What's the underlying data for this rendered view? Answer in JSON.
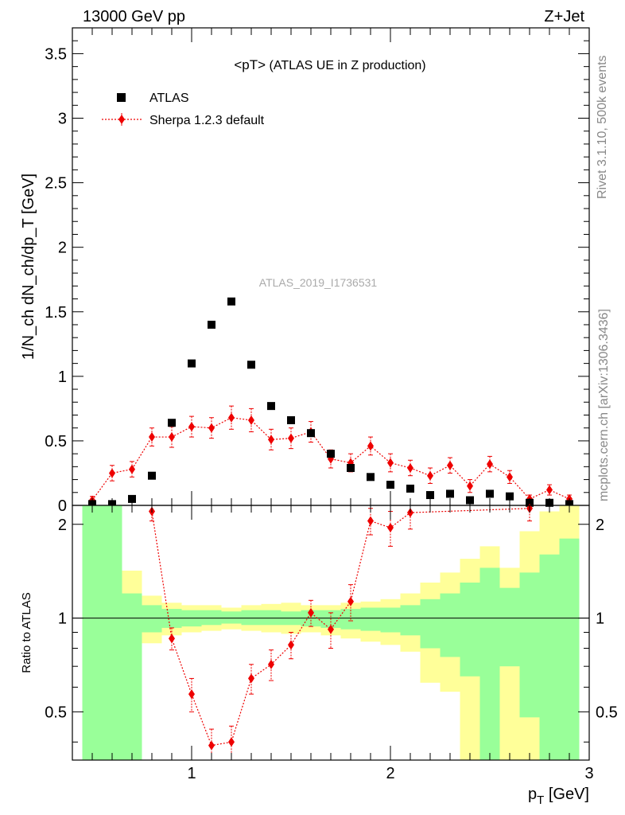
{
  "header": {
    "left": "13000 GeV pp",
    "right": "Z+Jet"
  },
  "main_plot": {
    "title_prefix": "<pT>",
    "title_suffix": " (ATLAS UE in Z production)",
    "ylabel": "1/N_ch dN_ch/dp_T [GeV]",
    "watermark": "ATLAS_2019_I1736531"
  },
  "ratio_plot": {
    "ylabel": "Ratio to ATLAS"
  },
  "side_notes": {
    "rivet": "Rivet 3.1.10,  500k events",
    "mcplots": "mcplots.cern.ch [arXiv:1306.3436]"
  },
  "legend": {
    "data_label": "ATLAS",
    "mc_label": "Sherpa 1.2.3 default"
  },
  "colors": {
    "data": "#000000",
    "mc": "#ee0000",
    "band_1sigma": "#99ff99",
    "band_2sigma": "#ffff99"
  },
  "chart_data": [
    {
      "type": "scatter",
      "xlabel": "p_T [GeV]",
      "xlim": [
        0.4,
        3.0
      ],
      "ylim": [
        0,
        3.7
      ],
      "xticks": [
        "1",
        "2",
        "3"
      ],
      "yticks": [
        "0",
        "0.5",
        "1",
        "1.5",
        "2",
        "2.5",
        "3",
        "3.5"
      ],
      "x": [
        0.5,
        0.6,
        0.7,
        0.8,
        0.9,
        1.0,
        1.1,
        1.2,
        1.3,
        1.4,
        1.5,
        1.6,
        1.7,
        1.8,
        1.9,
        2.0,
        2.1,
        2.2,
        2.3,
        2.4,
        2.5,
        2.6,
        2.7,
        2.8,
        2.9
      ],
      "series": [
        {
          "name": "ATLAS",
          "values": [
            0.01,
            0.01,
            0.05,
            0.23,
            0.64,
            1.1,
            1.4,
            1.58,
            1.09,
            0.77,
            0.66,
            0.56,
            0.4,
            0.29,
            0.22,
            0.16,
            0.13,
            0.08,
            0.09,
            0.04,
            0.09,
            0.07,
            0.02,
            0.02,
            0.01
          ]
        },
        {
          "name": "Sherpa 1.2.3 default",
          "values": [
            0.04,
            0.25,
            0.28,
            0.53,
            0.53,
            0.61,
            0.6,
            0.68,
            0.66,
            0.51,
            0.52,
            0.57,
            0.36,
            0.33,
            0.46,
            0.33,
            0.29,
            0.23,
            0.31,
            0.15,
            0.32,
            0.22,
            0.05,
            0.12,
            0.05
          ],
          "errors": [
            0.03,
            0.06,
            0.06,
            0.07,
            0.08,
            0.08,
            0.08,
            0.09,
            0.09,
            0.08,
            0.08,
            0.08,
            0.07,
            0.07,
            0.07,
            0.07,
            0.06,
            0.06,
            0.06,
            0.05,
            0.06,
            0.05,
            0.03,
            0.04,
            0.03
          ]
        }
      ]
    },
    {
      "type": "scatter",
      "xlabel": "p_T [GeV]",
      "ylabel": "Ratio to ATLAS",
      "xlim": [
        0.4,
        3.0
      ],
      "ylim": [
        0.35,
        2.3
      ],
      "xticks": [
        "1",
        "2",
        "3"
      ],
      "yticks": [
        "0.5",
        "1",
        "2"
      ],
      "reference_line": 1,
      "bins": [
        0.45,
        0.55,
        0.65,
        0.75,
        0.85,
        0.95,
        1.05,
        1.15,
        1.25,
        1.35,
        1.45,
        1.55,
        1.65,
        1.75,
        1.85,
        1.95,
        2.05,
        2.15,
        2.25,
        2.35,
        2.45,
        2.55,
        2.65,
        2.75,
        2.85,
        2.95
      ],
      "band_1sigma": {
        "upper": [
          2.3,
          2.3,
          1.2,
          1.1,
          1.07,
          1.06,
          1.06,
          1.05,
          1.06,
          1.06,
          1.05,
          1.06,
          1.06,
          1.07,
          1.08,
          1.08,
          1.1,
          1.15,
          1.2,
          1.3,
          1.45,
          1.25,
          1.4,
          1.6,
          1.8
        ],
        "lower": [
          0.35,
          0.35,
          0.35,
          0.9,
          0.93,
          0.94,
          0.95,
          0.96,
          0.95,
          0.95,
          0.95,
          0.94,
          0.93,
          0.92,
          0.91,
          0.9,
          0.88,
          0.8,
          0.75,
          0.65,
          0.35,
          0.7,
          0.48,
          0.35,
          0.35
        ]
      },
      "band_2sigma": {
        "upper": [
          2.3,
          2.3,
          1.42,
          1.18,
          1.12,
          1.1,
          1.1,
          1.08,
          1.1,
          1.11,
          1.12,
          1.1,
          1.1,
          1.12,
          1.13,
          1.15,
          1.2,
          1.3,
          1.4,
          1.55,
          1.7,
          1.45,
          1.9,
          2.2,
          2.3
        ],
        "lower": [
          0.35,
          0.35,
          0.35,
          0.83,
          0.88,
          0.9,
          0.91,
          0.92,
          0.91,
          0.9,
          0.89,
          0.9,
          0.88,
          0.86,
          0.84,
          0.82,
          0.78,
          0.62,
          0.58,
          0.35,
          0.35,
          0.35,
          0.35,
          0.35,
          0.35
        ]
      },
      "x": [
        0.8,
        0.9,
        1.0,
        1.1,
        1.2,
        1.3,
        1.4,
        1.5,
        1.6,
        1.7,
        1.8,
        1.9,
        2.0,
        2.1,
        2.7
      ],
      "series": [
        {
          "name": "Sherpa 1.2.3 default",
          "values": [
            2.2,
            0.86,
            0.57,
            0.39,
            0.4,
            0.64,
            0.71,
            0.82,
            1.04,
            0.92,
            1.13,
            2.05,
            1.95,
            2.18,
            2.25
          ],
          "errors": [
            0.15,
            0.07,
            0.07,
            0.05,
            0.05,
            0.07,
            0.08,
            0.08,
            0.1,
            0.12,
            0.15,
            0.2,
            0.25,
            0.25,
            0.2
          ]
        }
      ]
    }
  ]
}
